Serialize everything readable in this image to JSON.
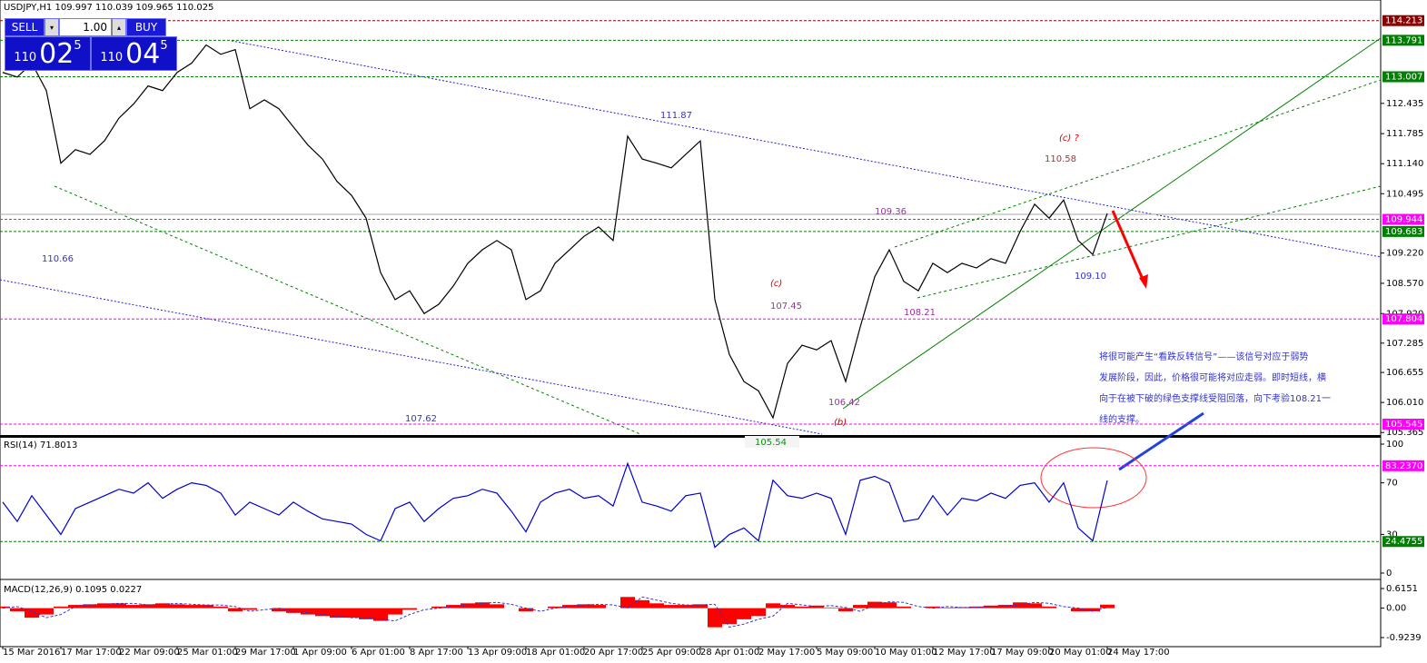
{
  "chart_data": [
    {
      "type": "line",
      "title": "USDJPY,H1 109.997 110.039 109.965 110.025",
      "color": "#000000",
      "values": [
        113.1,
        113.0,
        113.3,
        112.71,
        111.15,
        111.44,
        111.34,
        111.63,
        112.12,
        112.42,
        112.81,
        112.71,
        113.1,
        113.3,
        113.69,
        113.49,
        113.59,
        112.32,
        112.51,
        112.32,
        111.93,
        111.54,
        111.24,
        110.76,
        110.46,
        109.97,
        108.8,
        108.22,
        108.41,
        107.92,
        108.12,
        108.51,
        109.0,
        109.29,
        109.49,
        109.29,
        108.22,
        108.41,
        109.0,
        109.29,
        109.58,
        109.78,
        109.49,
        111.73,
        111.24,
        111.15,
        111.05,
        111.34,
        111.63,
        108.22,
        107.04,
        106.46,
        106.26,
        105.68,
        106.85,
        107.24,
        107.14,
        107.34,
        106.46,
        107.63,
        108.71,
        109.29,
        108.61,
        108.41,
        109.0,
        108.8,
        109.0,
        108.9,
        109.1,
        109.0,
        109.68,
        110.27,
        109.97,
        110.36,
        109.49,
        109.19,
        110.07
      ],
      "ylim": [
        105.33,
        114.5
      ],
      "yticks": [
        105.365,
        {
          "value": 106.01,
          "label": "106.010"
        },
        106.655,
        107.285,
        {
          "value": 107.92,
          "label": "107.920"
        },
        {
          "value": 108.57,
          "label": "108.570"
        },
        {
          "value": 109.22,
          "label": "109.220"
        },
        {
          "value": 110.495,
          "label": "110.495"
        },
        {
          "value": 111.14,
          "label": "111.140"
        },
        111.785,
        112.435
      ],
      "levels": [
        {
          "value": 114.213,
          "color": "#8b0000"
        },
        {
          "value": 113.791,
          "color": "#008000"
        },
        {
          "value": 113.007,
          "color": "#008000"
        },
        {
          "value": 109.944,
          "color": "#ff00ff"
        },
        {
          "value": 109.683,
          "color": "#008000"
        },
        {
          "value": 107.804,
          "color": "#ff00ff"
        },
        {
          "value": 105.545,
          "color": "#ff00ff"
        }
      ],
      "annotations": [
        {
          "text": "111.87",
          "color": "#3333cc"
        },
        {
          "text": "110.66",
          "color": "#3333cc"
        },
        {
          "text": "107.62",
          "color": "#3333cc"
        },
        {
          "text": "105.54",
          "color": "#009900"
        },
        {
          "text": "(b)",
          "color": "#cc0000"
        },
        {
          "text": "(c)",
          "color": "#cc0000"
        },
        {
          "text": "107.45",
          "color": "#993399"
        },
        {
          "text": "106.42",
          "color": "#993399"
        },
        {
          "text": "108.21",
          "color": "#993399"
        },
        {
          "text": "109.36",
          "color": "#993399"
        },
        {
          "text": "(c) ?",
          "color": "#cc0000"
        },
        {
          "text": "110.58",
          "color": "#aa3333"
        },
        {
          "text": "109.10",
          "color": "#3333cc"
        }
      ],
      "note": {
        "color": "#3333cc",
        "lines": [
          "将很可能产生“看跌反转信号”——该信号对应于弱势",
          "发展阶段，因此，价格很可能将对应走弱。即时短线，横",
          "向于在被下破的绿色支撑线受阻回落，向下考验108.21一",
          "线的支撑。"
        ]
      }
    },
    {
      "type": "line",
      "title": "RSI(14) 71.8013",
      "color": "#0000cd",
      "values": [
        55,
        40,
        60,
        45,
        30,
        50,
        55,
        60,
        65,
        62,
        70,
        58,
        65,
        70,
        68,
        62,
        45,
        55,
        50,
        45,
        55,
        48,
        42,
        40,
        38,
        30,
        25,
        50,
        55,
        40,
        50,
        58,
        60,
        65,
        62,
        48,
        32,
        55,
        62,
        65,
        58,
        60,
        52,
        85,
        55,
        52,
        48,
        60,
        62,
        20,
        30,
        35,
        25,
        72,
        60,
        58,
        62,
        58,
        30,
        72,
        75,
        70,
        40,
        42,
        60,
        45,
        58,
        56,
        62,
        58,
        68,
        70,
        55,
        70,
        35,
        25,
        71.8013
      ],
      "ylim": [
        0,
        100
      ],
      "yticks": [
        0,
        30,
        70,
        100
      ],
      "levels": [
        {
          "value": 83.237,
          "label": "83.2370",
          "color": "#ff00ff"
        },
        {
          "value": 24.4755,
          "label": "24.4755",
          "color": "#008000"
        }
      ]
    },
    {
      "type": "macd",
      "title": "MACD(12,26,9) 0.1095 0.0227",
      "color": "#ff0000",
      "signal_color": "#3333cc",
      "categories": [
        "15 Mar 2016",
        null,
        null,
        null,
        "17 Mar 17:00",
        null,
        null,
        null,
        "22 Mar 09:00",
        null,
        null,
        null,
        "25 Mar 01:00",
        null,
        null,
        null,
        "29 Mar 17:00",
        null,
        null,
        null,
        "1 Apr 09:00",
        null,
        null,
        null,
        "6 Apr 01:00",
        null,
        null,
        null,
        "8 Apr 17:00",
        null,
        null,
        null,
        "13 Apr 09:00",
        null,
        null,
        null,
        "18 Apr 01:00",
        null,
        null,
        null,
        "20 Apr 17:00",
        null,
        null,
        null,
        "25 Apr 09:00",
        null,
        null,
        null,
        "28 Apr 01:00",
        null,
        null,
        null,
        "2 May 17:00",
        null,
        null,
        null,
        "5 May 09:00",
        null,
        null,
        null,
        "10 May 01:00",
        null,
        null,
        null,
        "12 May 17:00",
        null,
        null,
        null,
        "17 May 09:00",
        null,
        null,
        null,
        "20 May 01:00",
        null,
        null,
        null,
        "24 May 17:00"
      ],
      "values": [
        0.05,
        -0.1,
        -0.3,
        -0.2,
        0.05,
        0.1,
        0.12,
        0.15,
        0.15,
        0.1,
        0.12,
        0.15,
        0.12,
        0.1,
        0.1,
        0.05,
        -0.1,
        -0.05,
        0,
        -0.1,
        -0.15,
        -0.2,
        -0.25,
        -0.3,
        -0.3,
        -0.35,
        -0.4,
        -0.2,
        -0.05,
        0,
        0.05,
        0.1,
        0.15,
        0.18,
        0.12,
        0,
        -0.1,
        0,
        0.05,
        0.1,
        0.12,
        0.1,
        0,
        0.35,
        0.25,
        0.15,
        0.1,
        0.1,
        0.12,
        -0.6,
        -0.5,
        -0.35,
        -0.25,
        0.15,
        0.1,
        0.05,
        0.08,
        0.02,
        -0.1,
        0.1,
        0.2,
        0.18,
        0.05,
        0,
        0.05,
        0.02,
        0.03,
        0.05,
        0.08,
        0.1,
        0.18,
        0.15,
        0.05,
        0,
        -0.1,
        -0.1,
        0.1095
      ],
      "signal": [
        0,
        0.05,
        -0.1,
        -0.3,
        -0.2,
        0.05,
        0.1,
        0.12,
        0.15,
        0.15,
        0.1,
        0.12,
        0.15,
        0.12,
        0.1,
        0.1,
        0.05,
        -0.1,
        -0.05,
        0,
        -0.1,
        -0.15,
        -0.2,
        -0.25,
        -0.3,
        -0.3,
        -0.35,
        -0.4,
        -0.2,
        -0.05,
        0,
        0.05,
        0.1,
        0.15,
        0.18,
        0.12,
        0,
        -0.1,
        0,
        0.05,
        0.1,
        0.12,
        0.1,
        0,
        0.35,
        0.25,
        0.15,
        0.1,
        0.1,
        0.12,
        -0.6,
        -0.5,
        -0.35,
        -0.25,
        0.15,
        0.1,
        0.05,
        0.08,
        0.02,
        -0.1,
        0.1,
        0.2,
        0.18,
        0.05,
        0,
        0.05,
        0.02,
        0.03,
        0.05,
        0.08,
        0.1,
        0.18,
        0.15,
        0.05,
        0,
        -0.1,
        0.0227
      ],
      "ylim": [
        -0.9239,
        0.6151
      ],
      "yticks": [
        -0.9239,
        {
          "value": 0,
          "label": "0.00"
        },
        0.6151
      ]
    }
  ],
  "trade_panel": {
    "sell": "SELL",
    "buy": "BUY",
    "volume": "1.00",
    "bid": {
      "prefix": "110",
      "big": "02",
      "sup": "5"
    },
    "ask": {
      "prefix": "110",
      "big": "04",
      "sup": "5"
    }
  }
}
